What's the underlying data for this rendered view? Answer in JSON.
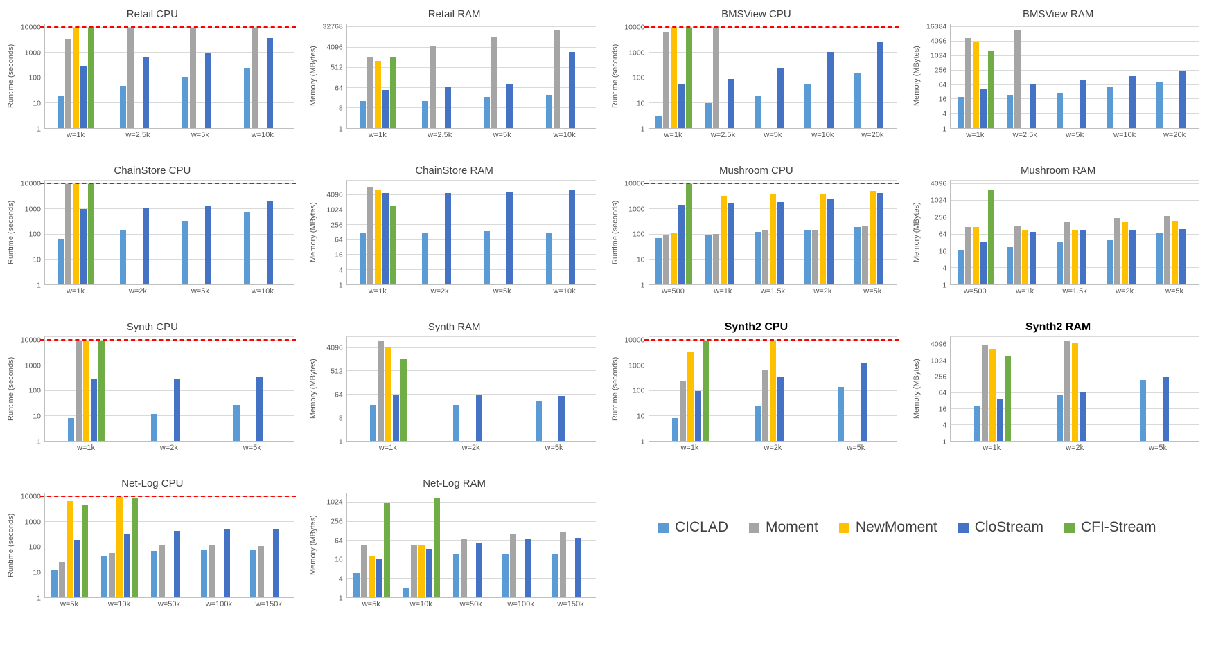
{
  "colors": {
    "CICLAD": "#5B9BD5",
    "Moment": "#A5A5A5",
    "NewMoment": "#FFC000",
    "CloStream": "#4472C4",
    "CFI-Stream": "#70AD47"
  },
  "legend": {
    "items": [
      {
        "label": "CICLAD",
        "color": "#5B9BD5"
      },
      {
        "label": "Moment",
        "color": "#A5A5A5"
      },
      {
        "label": "NewMoment",
        "color": "#FFC000"
      },
      {
        "label": "CloStream",
        "color": "#4472C4"
      },
      {
        "label": "CFI-Stream",
        "color": "#70AD47"
      }
    ]
  },
  "chart_data": [
    {
      "type": "bar",
      "title": "Retail CPU",
      "ylabel": "Runtime (seconds)",
      "yticks": [
        1,
        10,
        100,
        1000,
        10000
      ],
      "ytop": 14000,
      "timeout_line": 10000,
      "categories": [
        "w=1k",
        "w=2.5k",
        "w=5k",
        "w=10k"
      ],
      "series": [
        {
          "name": "CICLAD",
          "values": [
            20,
            50,
            110,
            260
          ]
        },
        {
          "name": "Moment",
          "values": [
            3500,
            10000,
            10000,
            10000
          ]
        },
        {
          "name": "NewMoment",
          "values": [
            10000,
            null,
            null,
            null
          ]
        },
        {
          "name": "CloStream",
          "values": [
            300,
            700,
            1000,
            4000
          ]
        },
        {
          "name": "CFI-Stream",
          "values": [
            10000,
            null,
            null,
            null
          ]
        }
      ]
    },
    {
      "type": "bar",
      "title": "Retail RAM",
      "ylabel": "Memory (MBytes)",
      "yticks": [
        1,
        8,
        64,
        512,
        4096,
        32768
      ],
      "ytop": 45000,
      "timeout_line": null,
      "categories": [
        "w=1k",
        "w=2.5k",
        "w=5k",
        "w=10k"
      ],
      "series": [
        {
          "name": "CICLAD",
          "values": [
            16,
            16,
            25,
            30
          ]
        },
        {
          "name": "Moment",
          "values": [
            1500,
            5000,
            12000,
            25000
          ]
        },
        {
          "name": "NewMoment",
          "values": [
            1000,
            null,
            null,
            null
          ]
        },
        {
          "name": "CloStream",
          "values": [
            50,
            70,
            90,
            2500
          ]
        },
        {
          "name": "CFI-Stream",
          "values": [
            1500,
            null,
            null,
            null
          ]
        }
      ]
    },
    {
      "type": "bar",
      "title": "BMSView CPU",
      "ylabel": "Runtime (seconds)",
      "yticks": [
        1,
        10,
        100,
        1000,
        10000
      ],
      "ytop": 14000,
      "timeout_line": 10000,
      "categories": [
        "w=1k",
        "w=2.5k",
        "w=5k",
        "w=10k",
        "w=20k"
      ],
      "series": [
        {
          "name": "CICLAD",
          "values": [
            3,
            10,
            20,
            60,
            160
          ]
        },
        {
          "name": "Moment",
          "values": [
            7000,
            10000,
            null,
            null,
            null
          ]
        },
        {
          "name": "NewMoment",
          "values": [
            10000,
            null,
            null,
            null,
            null
          ]
        },
        {
          "name": "CloStream",
          "values": [
            60,
            90,
            250,
            1100,
            2800
          ]
        },
        {
          "name": "CFI-Stream",
          "values": [
            10000,
            null,
            null,
            null,
            null
          ]
        }
      ]
    },
    {
      "type": "bar",
      "title": "BMSView RAM",
      "ylabel": "Memory (MBytes)",
      "yticks": [
        1,
        4,
        16,
        64,
        256,
        1024,
        4096,
        16384
      ],
      "ytop": 22000,
      "timeout_line": null,
      "categories": [
        "w=1k",
        "w=2.5k",
        "w=5k",
        "w=10k",
        "w=20k"
      ],
      "series": [
        {
          "name": "CICLAD",
          "values": [
            20,
            25,
            30,
            50,
            80
          ]
        },
        {
          "name": "Moment",
          "values": [
            6000,
            12000,
            null,
            null,
            null
          ]
        },
        {
          "name": "NewMoment",
          "values": [
            4000,
            null,
            null,
            null,
            null
          ]
        },
        {
          "name": "CloStream",
          "values": [
            45,
            70,
            100,
            150,
            250
          ]
        },
        {
          "name": "CFI-Stream",
          "values": [
            1800,
            null,
            null,
            null,
            null
          ]
        }
      ]
    },
    {
      "type": "bar",
      "title": "ChainStore CPU",
      "ylabel": "Runtime (seconds)",
      "yticks": [
        1,
        10,
        100,
        1000,
        10000
      ],
      "ytop": 14000,
      "timeout_line": 10000,
      "categories": [
        "w=1k",
        "w=2k",
        "w=5k",
        "w=10k"
      ],
      "series": [
        {
          "name": "CICLAD",
          "values": [
            65,
            140,
            350,
            800
          ]
        },
        {
          "name": "Moment",
          "values": [
            10000,
            null,
            null,
            null
          ]
        },
        {
          "name": "NewMoment",
          "values": [
            10000,
            null,
            null,
            null
          ]
        },
        {
          "name": "CloStream",
          "values": [
            1000,
            1100,
            1300,
            2200
          ]
        },
        {
          "name": "CFI-Stream",
          "values": [
            10000,
            null,
            null,
            null
          ]
        }
      ]
    },
    {
      "type": "bar",
      "title": "ChainStore RAM",
      "ylabel": "Memory (MBytes)",
      "yticks": [
        1,
        4,
        16,
        64,
        256,
        1024,
        4096
      ],
      "ytop": 16384,
      "timeout_line": null,
      "categories": [
        "w=1k",
        "w=2k",
        "w=5k",
        "w=10k"
      ],
      "series": [
        {
          "name": "CICLAD",
          "values": [
            120,
            130,
            150,
            130
          ]
        },
        {
          "name": "Moment",
          "values": [
            9000,
            null,
            null,
            null
          ]
        },
        {
          "name": "NewMoment",
          "values": [
            6500,
            null,
            null,
            null
          ]
        },
        {
          "name": "CloStream",
          "values": [
            5000,
            5000,
            5500,
            6500
          ]
        },
        {
          "name": "CFI-Stream",
          "values": [
            1500,
            null,
            null,
            null
          ]
        }
      ]
    },
    {
      "type": "bar",
      "title": "Mushroom CPU",
      "ylabel": "Runtime (seconds)",
      "yticks": [
        1,
        10,
        100,
        1000,
        10000
      ],
      "ytop": 14000,
      "timeout_line": 10000,
      "categories": [
        "w=500",
        "w=1k",
        "w=1.5k",
        "w=2k",
        "w=5k"
      ],
      "series": [
        {
          "name": "CICLAD",
          "values": [
            70,
            100,
            130,
            150,
            200
          ]
        },
        {
          "name": "Moment",
          "values": [
            90,
            105,
            145,
            155,
            210
          ]
        },
        {
          "name": "NewMoment",
          "values": [
            120,
            3500,
            4000,
            4000,
            5500
          ]
        },
        {
          "name": "CloStream",
          "values": [
            1500,
            1700,
            2000,
            2700,
            4500
          ]
        },
        {
          "name": "CFI-Stream",
          "values": [
            10000,
            null,
            null,
            null,
            null
          ]
        }
      ]
    },
    {
      "type": "bar",
      "title": "Mushroom RAM",
      "ylabel": "Memory (MBytes)",
      "yticks": [
        1,
        4,
        16,
        64,
        256,
        1024,
        4096
      ],
      "ytop": 5500,
      "timeout_line": null,
      "categories": [
        "w=500",
        "w=1k",
        "w=1.5k",
        "w=2k",
        "w=5k"
      ],
      "series": [
        {
          "name": "CICLAD",
          "values": [
            18,
            22,
            35,
            40,
            70
          ]
        },
        {
          "name": "Moment",
          "values": [
            120,
            130,
            180,
            250,
            300
          ]
        },
        {
          "name": "NewMoment",
          "values": [
            120,
            90,
            90,
            180,
            200
          ]
        },
        {
          "name": "CloStream",
          "values": [
            35,
            80,
            90,
            90,
            100
          ]
        },
        {
          "name": "CFI-Stream",
          "values": [
            2500,
            null,
            null,
            null,
            null
          ]
        }
      ]
    },
    {
      "type": "bar",
      "title": "Synth CPU",
      "ylabel": "Runtime (seconds)",
      "yticks": [
        1,
        10,
        100,
        1000,
        10000
      ],
      "ytop": 14000,
      "timeout_line": 10000,
      "categories": [
        "w=1k",
        "w=2k",
        "w=5k"
      ],
      "series": [
        {
          "name": "CICLAD",
          "values": [
            8,
            12,
            28
          ]
        },
        {
          "name": "Moment",
          "values": [
            10000,
            null,
            null
          ]
        },
        {
          "name": "NewMoment",
          "values": [
            10000,
            null,
            null
          ]
        },
        {
          "name": "CloStream",
          "values": [
            280,
            300,
            350
          ]
        },
        {
          "name": "CFI-Stream",
          "values": [
            10000,
            null,
            null
          ]
        }
      ]
    },
    {
      "type": "bar",
      "title": "Synth RAM",
      "ylabel": "Memory (MBytes)",
      "yticks": [
        1,
        8,
        64,
        512,
        4096
      ],
      "ytop": 11000,
      "timeout_line": null,
      "categories": [
        "w=1k",
        "w=2k",
        "w=5k"
      ],
      "series": [
        {
          "name": "CICLAD",
          "values": [
            25,
            25,
            35
          ]
        },
        {
          "name": "Moment",
          "values": [
            8000,
            null,
            null
          ]
        },
        {
          "name": "NewMoment",
          "values": [
            4500,
            null,
            null
          ]
        },
        {
          "name": "CloStream",
          "values": [
            60,
            60,
            55
          ]
        },
        {
          "name": "CFI-Stream",
          "values": [
            1500,
            null,
            null
          ]
        }
      ]
    },
    {
      "type": "bar",
      "title": "Synth2 CPU",
      "bold_title": true,
      "ylabel": "Runtime (seconds)",
      "yticks": [
        1,
        10,
        100,
        1000,
        10000
      ],
      "ytop": 14000,
      "timeout_line": 10000,
      "categories": [
        "w=1k",
        "w=2k",
        "w=5k"
      ],
      "series": [
        {
          "name": "CICLAD",
          "values": [
            8,
            25,
            140
          ]
        },
        {
          "name": "Moment",
          "values": [
            250,
            700,
            null
          ]
        },
        {
          "name": "NewMoment",
          "values": [
            3500,
            10000,
            null
          ]
        },
        {
          "name": "CloStream",
          "values": [
            100,
            350,
            1300
          ]
        },
        {
          "name": "CFI-Stream",
          "values": [
            10000,
            null,
            null
          ]
        }
      ]
    },
    {
      "type": "bar",
      "title": "Synth2 RAM",
      "bold_title": true,
      "ylabel": "Memory (MBytes)",
      "yticks": [
        1,
        4,
        16,
        64,
        256,
        1024,
        4096
      ],
      "ytop": 8192,
      "timeout_line": null,
      "categories": [
        "w=1k",
        "w=2k",
        "w=5k"
      ],
      "series": [
        {
          "name": "CICLAD",
          "values": [
            20,
            55,
            200
          ]
        },
        {
          "name": "Moment",
          "values": [
            4000,
            6000,
            null
          ]
        },
        {
          "name": "NewMoment",
          "values": [
            3000,
            5000,
            null
          ]
        },
        {
          "name": "CloStream",
          "values": [
            40,
            70,
            250
          ]
        },
        {
          "name": "CFI-Stream",
          "values": [
            1500,
            null,
            null
          ]
        }
      ]
    },
    {
      "type": "bar",
      "title": "Net-Log CPU",
      "ylabel": "Runtime (seconds)",
      "yticks": [
        1,
        10,
        100,
        1000,
        10000
      ],
      "ytop": 14000,
      "timeout_line": 10000,
      "categories": [
        "w=5k",
        "w=10k",
        "w=50k",
        "w=100k",
        "w=150k"
      ],
      "series": [
        {
          "name": "CICLAD",
          "values": [
            12,
            45,
            70,
            80,
            80
          ]
        },
        {
          "name": "Moment",
          "values": [
            25,
            60,
            130,
            130,
            110
          ]
        },
        {
          "name": "NewMoment",
          "values": [
            7000,
            10000,
            null,
            null,
            null
          ]
        },
        {
          "name": "CloStream",
          "values": [
            200,
            350,
            450,
            500,
            550
          ]
        },
        {
          "name": "CFI-Stream",
          "values": [
            5000,
            9000,
            null,
            null,
            null
          ]
        }
      ]
    },
    {
      "type": "bar",
      "title": "Net-Log RAM",
      "ylabel": "Memory (MBytes)",
      "yticks": [
        1,
        4,
        16,
        64,
        256,
        1024
      ],
      "ytop": 2048,
      "timeout_line": null,
      "categories": [
        "w=5k",
        "w=10k",
        "w=50k",
        "w=100k",
        "w=150k"
      ],
      "series": [
        {
          "name": "CICLAD",
          "values": [
            6,
            2,
            25,
            25,
            25
          ]
        },
        {
          "name": "Moment",
          "values": [
            45,
            45,
            70,
            100,
            120
          ]
        },
        {
          "name": "NewMoment",
          "values": [
            20,
            45,
            null,
            null,
            null
          ]
        },
        {
          "name": "CloStream",
          "values": [
            16,
            35,
            55,
            70,
            80
          ]
        },
        {
          "name": "CFI-Stream",
          "values": [
            1000,
            1500,
            null,
            null,
            null
          ]
        }
      ]
    }
  ]
}
